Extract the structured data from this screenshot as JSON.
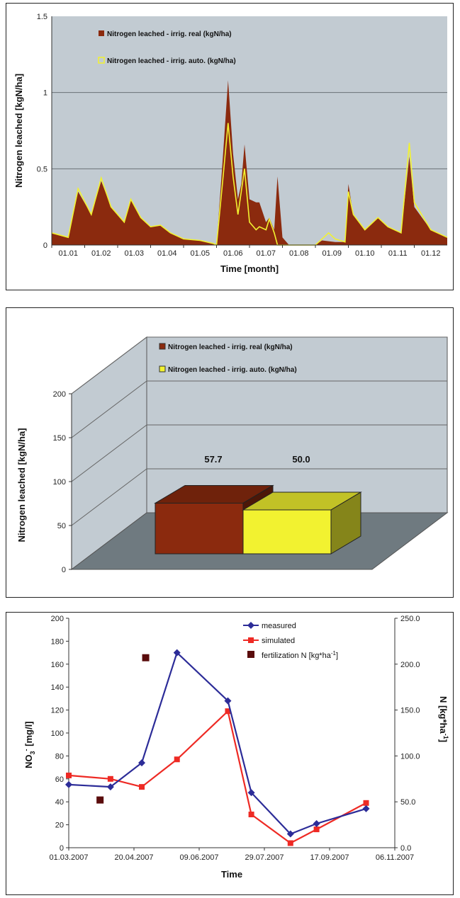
{
  "chart_data": [
    {
      "type": "area",
      "xlabel": "Time [month]",
      "ylabel": "Nitrogen leached [kgN/ha]",
      "ylim": [
        0,
        1.5
      ],
      "yticks": [
        "0",
        "0.5",
        "1",
        "1.5"
      ],
      "xticks": [
        "01.01",
        "01.02",
        "01.03",
        "01.04",
        "01.05",
        "01.06",
        "01.07",
        "01.08",
        "01.09",
        "01.10",
        "01.11",
        "01.12"
      ],
      "grid": true,
      "legend_position": "top-left",
      "colors": {
        "real": "#8b2a0e",
        "auto": "#f2f230",
        "plot_bg": "#c2cbd2"
      },
      "series": [
        {
          "name": "Nitrogen leached - irrig. real (kgN/ha)",
          "points": [
            [
              0,
              0.08
            ],
            [
              0.5,
              0.05
            ],
            [
              0.8,
              0.35
            ],
            [
              1.2,
              0.2
            ],
            [
              1.5,
              0.42
            ],
            [
              1.8,
              0.25
            ],
            [
              2.2,
              0.15
            ],
            [
              2.4,
              0.3
            ],
            [
              2.7,
              0.18
            ],
            [
              3,
              0.12
            ],
            [
              3.3,
              0.13
            ],
            [
              3.6,
              0.08
            ],
            [
              4,
              0.04
            ],
            [
              4.5,
              0.03
            ],
            [
              4.9,
              0.01
            ],
            [
              5,
              0.0
            ],
            [
              5.2,
              0.6
            ],
            [
              5.35,
              1.08
            ],
            [
              5.5,
              0.6
            ],
            [
              5.65,
              0.3
            ],
            [
              5.75,
              0.4
            ],
            [
              5.85,
              0.66
            ],
            [
              6,
              0.3
            ],
            [
              6.2,
              0.28
            ],
            [
              6.3,
              0.28
            ],
            [
              6.5,
              0.15
            ],
            [
              6.6,
              0.18
            ],
            [
              6.75,
              0.1
            ],
            [
              6.85,
              0.45
            ],
            [
              7,
              0.05
            ],
            [
              7.2,
              0.0
            ],
            [
              8,
              0.0
            ],
            [
              8.2,
              0.03
            ],
            [
              8.6,
              0.02
            ],
            [
              8.9,
              0.02
            ],
            [
              9,
              0.4
            ],
            [
              9.15,
              0.2
            ],
            [
              9.5,
              0.1
            ],
            [
              9.9,
              0.18
            ],
            [
              10.2,
              0.12
            ],
            [
              10.6,
              0.08
            ],
            [
              10.85,
              0.58
            ],
            [
              11,
              0.25
            ],
            [
              11.5,
              0.1
            ],
            [
              12,
              0.05
            ]
          ]
        },
        {
          "name": "Nitrogen leached - irrig. auto. (kgN/ha)",
          "points": [
            [
              0,
              0.08
            ],
            [
              0.5,
              0.05
            ],
            [
              0.8,
              0.37
            ],
            [
              1.2,
              0.2
            ],
            [
              1.5,
              0.44
            ],
            [
              1.8,
              0.25
            ],
            [
              2.2,
              0.15
            ],
            [
              2.4,
              0.3
            ],
            [
              2.7,
              0.18
            ],
            [
              3,
              0.12
            ],
            [
              3.3,
              0.13
            ],
            [
              3.6,
              0.08
            ],
            [
              4,
              0.04
            ],
            [
              4.5,
              0.03
            ],
            [
              4.9,
              0.01
            ],
            [
              5,
              0.0
            ],
            [
              5.2,
              0.45
            ],
            [
              5.35,
              0.8
            ],
            [
              5.5,
              0.45
            ],
            [
              5.65,
              0.2
            ],
            [
              5.75,
              0.35
            ],
            [
              5.85,
              0.5
            ],
            [
              6,
              0.15
            ],
            [
              6.2,
              0.1
            ],
            [
              6.3,
              0.12
            ],
            [
              6.5,
              0.1
            ],
            [
              6.6,
              0.17
            ],
            [
              6.75,
              0.08
            ],
            [
              6.85,
              0.0
            ],
            [
              7,
              0.0
            ],
            [
              7.2,
              0.0
            ],
            [
              8,
              0.0
            ],
            [
              8.2,
              0.04
            ],
            [
              8.4,
              0.08
            ],
            [
              8.6,
              0.04
            ],
            [
              8.9,
              0.02
            ],
            [
              9,
              0.35
            ],
            [
              9.15,
              0.2
            ],
            [
              9.5,
              0.1
            ],
            [
              9.9,
              0.18
            ],
            [
              10.2,
              0.12
            ],
            [
              10.6,
              0.08
            ],
            [
              10.85,
              0.67
            ],
            [
              11,
              0.28
            ],
            [
              11.5,
              0.1
            ],
            [
              12,
              0.05
            ]
          ]
        }
      ]
    },
    {
      "type": "bar",
      "ylabel": "Nitrogen leached [kgN/ha]",
      "ylim": [
        0,
        200
      ],
      "yticks": [
        "0",
        "50",
        "100",
        "150",
        "200"
      ],
      "grid": true,
      "legend_position": "top",
      "series": [
        {
          "name": "Nitrogen leached - irrig. real (kgN/ha)",
          "value": 57.7,
          "label": "57.7",
          "color": "#8b2a0e"
        },
        {
          "name": "Nitrogen leached - irrig. auto. (kgN/ha)",
          "value": 50.0,
          "label": "50.0",
          "color": "#f2f230"
        }
      ]
    },
    {
      "type": "line",
      "xlabel": "Time",
      "ylabel": "NO3- [mg/l]",
      "ylabel_main": "NO",
      "ylabel_sub": "3",
      "ylabel_sup": "-",
      "ylabel_rest": " [mg/l]",
      "y2label_pre": "N [kg*ha",
      "y2label_sup": "-1",
      "y2label_post": "]",
      "ylim": [
        0,
        200
      ],
      "y2lim": [
        0,
        250
      ],
      "yticks": [
        "0",
        "20",
        "40",
        "60",
        "80",
        "100",
        "120",
        "140",
        "160",
        "180",
        "200"
      ],
      "y2ticks": [
        "0.0",
        "50.0",
        "100.0",
        "150.0",
        "200.0",
        "250.0"
      ],
      "xticks": [
        "01.03.2007",
        "20.04.2007",
        "09.06.2007",
        "29.07.2007",
        "17.09.2007",
        "06.11.2007"
      ],
      "legend_position": "top-right",
      "series": [
        {
          "name": "measured",
          "color": "#2c2c98",
          "points": [
            [
              0,
              55
            ],
            [
              32,
              53
            ],
            [
              56,
              74
            ],
            [
              83,
              170
            ],
            [
              122,
              128
            ],
            [
              140,
              48
            ],
            [
              170,
              12
            ],
            [
              190,
              21
            ],
            [
              228,
              34
            ]
          ]
        },
        {
          "name": "simulated",
          "color": "#ee2a24",
          "points": [
            [
              0,
              63
            ],
            [
              32,
              60
            ],
            [
              56,
              53
            ],
            [
              83,
              77
            ],
            [
              122,
              119
            ],
            [
              140,
              29
            ],
            [
              170,
              4
            ],
            [
              190,
              16
            ],
            [
              228,
              39
            ]
          ]
        },
        {
          "name_pre": "fertilization N [kg*ha",
          "name_sup": "-1",
          "name_post": "]",
          "color": "#5a0c0c",
          "axis": "right",
          "points": [
            [
              24,
              52
            ],
            [
              59,
              207
            ]
          ]
        }
      ]
    }
  ]
}
